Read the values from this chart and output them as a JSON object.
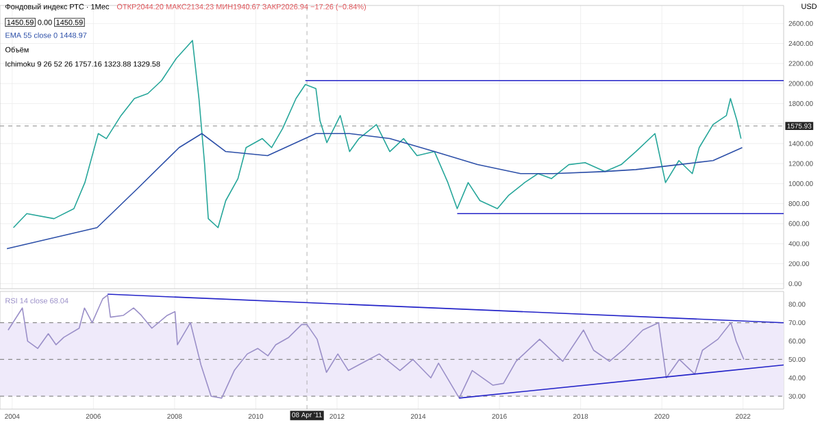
{
  "chart_data": [
    {
      "type": "line",
      "title": "Фондовый индекс РТС · 1Мес",
      "annotations": [
        "ОТКР2044.20 МАКС2134.23 МИН1940.67 ЗАКР2026.94 −17.26 (−0.84%)",
        "1450.59",
        "0.00",
        "1450.59",
        "1448.97",
        "Объём",
        "Ichimoku 9 26 52 26 1757.16 1323.88 1329.58",
        "USD"
      ],
      "xlim": [
        2003.7,
        2023.0
      ],
      "ylim": [
        -50,
        2780
      ],
      "xticks": [
        2004,
        2006,
        2008,
        2010,
        2012,
        2014,
        2016,
        2018,
        2020,
        2022
      ],
      "yticks": [
        {
          "value": 0,
          "label": "0.00"
        },
        {
          "value": 200,
          "label": "200.00"
        },
        {
          "value": 400,
          "label": "400.00"
        },
        {
          "value": 600,
          "label": "600.00"
        },
        {
          "value": 800,
          "label": "800.00"
        },
        {
          "value": 1000,
          "label": "1000.00"
        },
        {
          "value": 1200,
          "label": "1200.00"
        },
        {
          "value": 1400,
          "label": "1400.00"
        },
        {
          "value": 1600,
          "label": null
        },
        {
          "value": 1800,
          "label": "1800.00"
        },
        {
          "value": 2000,
          "label": "2000.00"
        },
        {
          "value": 2200,
          "label": "2200.00"
        },
        {
          "value": 2400,
          "label": "2400.00"
        },
        {
          "value": 2600,
          "label": "2600.00"
        }
      ],
      "tick_labels": "y",
      "grid": true,
      "ref_lines": [
        {
          "axis": "x",
          "value": 2011.26,
          "color": "#9e9e9e",
          "line_style": "dashed"
        },
        {
          "axis": "y",
          "value": 1575.93,
          "label": "1575.93",
          "color": "#9e9e9e",
          "line_style": "dashed"
        }
      ],
      "series": [
        {
          "color": "#26a69a",
          "x": [
            2004.03,
            2004.36,
            2005.03,
            2005.52,
            2005.79,
            2006.12,
            2006.32,
            2006.68,
            2007.01,
            2007.34,
            2007.68,
            2008.04,
            2008.44,
            2008.6,
            2008.74,
            2008.83,
            2009.07,
            2009.26,
            2009.56,
            2009.76,
            2010.16,
            2010.39,
            2010.66,
            2010.99,
            2011.22,
            2011.48,
            2011.58,
            2011.75,
            2012.08,
            2012.31,
            2012.54,
            2012.97,
            2013.3,
            2013.64,
            2013.97,
            2014.4,
            2014.73,
            2014.96,
            2015.23,
            2015.52,
            2015.95,
            2016.22,
            2016.62,
            2016.95,
            2017.28,
            2017.71,
            2018.11,
            2018.6,
            2019.0,
            2019.36,
            2019.83,
            2020.09,
            2020.42,
            2020.75,
            2020.92,
            2021.26,
            2021.59,
            2021.69,
            2021.85,
            2021.95
          ],
          "values": [
            560,
            700,
            650,
            750,
            1010,
            1500,
            1450,
            1680,
            1850,
            1900,
            2030,
            2250,
            2430,
            1850,
            1190,
            650,
            560,
            830,
            1050,
            1360,
            1450,
            1360,
            1550,
            1850,
            1990,
            1950,
            1630,
            1410,
            1680,
            1320,
            1450,
            1590,
            1320,
            1450,
            1280,
            1320,
            1010,
            750,
            1010,
            830,
            750,
            880,
            1010,
            1100,
            1050,
            1190,
            1210,
            1120,
            1190,
            1320,
            1500,
            1010,
            1230,
            1100,
            1360,
            1590,
            1680,
            1850,
            1630,
            1450
          ]
        },
        {
          "name": "EMA 55 close 0",
          "color": "#2c4fa8",
          "x": [
            2003.87,
            2006.09,
            2007.11,
            2008.11,
            2008.67,
            2009.26,
            2010.29,
            2011.48,
            2012.31,
            2013.3,
            2014.4,
            2015.46,
            2016.52,
            2017.34,
            2018.54,
            2019.36,
            2020.42,
            2021.26,
            2021.98
          ],
          "values": [
            350,
            560,
            960,
            1360,
            1500,
            1320,
            1280,
            1500,
            1500,
            1450,
            1320,
            1190,
            1100,
            1100,
            1120,
            1140,
            1190,
            1230,
            1360
          ]
        },
        {
          "type": "line",
          "color": "#2323c8",
          "x": [
            2011.22,
            2023.0
          ],
          "values": [
            2030,
            2030
          ]
        },
        {
          "type": "line",
          "color": "#2323c8",
          "x": [
            2014.96,
            2023.0
          ],
          "values": [
            700,
            700
          ]
        }
      ]
    },
    {
      "type": "line",
      "annotations": [
        "68.04"
      ],
      "xlim": [
        2003.7,
        2023.0
      ],
      "ylim": [
        23,
        87
      ],
      "xticks": [
        2004,
        2006,
        2008,
        2010,
        2012,
        2014,
        2016,
        2018,
        2020,
        2022
      ],
      "yticks": [
        {
          "value": 30,
          "label": "30.00"
        },
        {
          "value": 40,
          "label": "40.00"
        },
        {
          "value": 50,
          "label": "50.00"
        },
        {
          "value": 60,
          "label": "60.00"
        },
        {
          "value": 70,
          "label": "70.00"
        },
        {
          "value": 80,
          "label": "80.00"
        }
      ],
      "grid": "x",
      "bands": [
        {
          "axis": "y",
          "from": 30,
          "to": 70,
          "color": "#efeafa"
        }
      ],
      "ref_lines": [
        {
          "axis": "y",
          "value": 70,
          "color": "#8a8a8a",
          "line_style": "dashed"
        },
        {
          "axis": "y",
          "value": 50,
          "color": "#8a8a8a",
          "line_style": "dashed"
        },
        {
          "axis": "y",
          "value": 30,
          "color": "#8a8a8a",
          "line_style": "dashed"
        },
        {
          "axis": "x",
          "value": 2011.26,
          "label": "08 Apr '11",
          "color": "#9e9e9e",
          "line_style": "dashed"
        }
      ],
      "series": [
        {
          "name": "RSI 14 close",
          "color": "#9a8fc8",
          "x": [
            2003.9,
            2004.25,
            2004.38,
            2004.63,
            2004.89,
            2005.08,
            2005.27,
            2005.65,
            2005.78,
            2005.97,
            2006.23,
            2006.35,
            2006.42,
            2006.74,
            2006.99,
            2007.18,
            2007.44,
            2007.82,
            2008.01,
            2008.07,
            2008.39,
            2008.65,
            2008.9,
            2009.16,
            2009.47,
            2009.79,
            2010.05,
            2010.3,
            2010.49,
            2010.81,
            2011.13,
            2011.26,
            2011.51,
            2011.74,
            2012.02,
            2012.28,
            2012.53,
            2013.04,
            2013.55,
            2013.87,
            2014.31,
            2014.5,
            2015.01,
            2015.33,
            2015.84,
            2016.1,
            2016.41,
            2016.99,
            2017.56,
            2018.07,
            2018.32,
            2018.71,
            2019.09,
            2019.53,
            2019.92,
            2020.11,
            2020.43,
            2020.81,
            2021.0,
            2021.38,
            2021.7,
            2021.83,
            2022.02
          ],
          "values": [
            66,
            78,
            60,
            56,
            64,
            58,
            62,
            67,
            78,
            70,
            83,
            85,
            73,
            74,
            78,
            74,
            67,
            74,
            76,
            58,
            70,
            47,
            30,
            29,
            44,
            53,
            56,
            52,
            58,
            62,
            69,
            69,
            61,
            43,
            53,
            44,
            47,
            53,
            44,
            50,
            40,
            48,
            29,
            44,
            36,
            37,
            49,
            61,
            49,
            66,
            55,
            49,
            56,
            66,
            70,
            40,
            50,
            42,
            55,
            61,
            70,
            60,
            50
          ]
        },
        {
          "type": "line",
          "color": "#2323c8",
          "x": [
            2006.35,
            2023.0
          ],
          "values": [
            85.5,
            70
          ]
        },
        {
          "type": "line",
          "color": "#2323c8",
          "x": [
            2015.01,
            2023.0
          ],
          "values": [
            29,
            47
          ]
        }
      ]
    }
  ]
}
